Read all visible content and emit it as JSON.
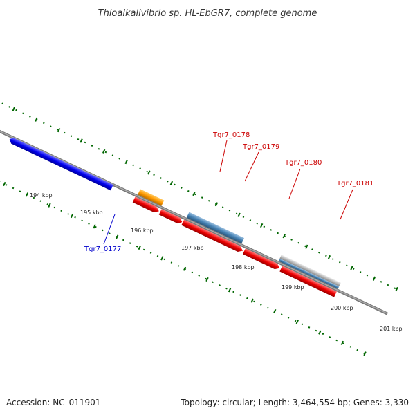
{
  "title": "Thioalkalivibrio sp. HL-EbGR7, complete genome",
  "footer": {
    "accession": "Accession: NC_011901",
    "summary": "Topology: circular; Length: 3,464,554 bp; Genes: 3,330"
  },
  "ticks": [
    "194 kbp",
    "195 kbp",
    "196 kbp",
    "197 kbp",
    "198 kbp",
    "199 kbp",
    "200 kbp",
    "201 kbp"
  ],
  "genes": [
    {
      "label": "Tgr7_0177",
      "color": "#0000cc"
    },
    {
      "label": "Tgr7_0178",
      "color": "#cc0000"
    },
    {
      "label": "Tgr7_0179",
      "color": "#cc0000"
    },
    {
      "label": "Tgr7_0180",
      "color": "#cc0000"
    },
    {
      "label": "Tgr7_0181",
      "color": "#cc0000"
    }
  ],
  "colors": {
    "cds_blue": "#0000ee",
    "cds_green": "#33cc33",
    "cds_red": "#ee0000",
    "cds_orange": "#ff9900",
    "cds_steel": "#4682b4",
    "cds_grey": "#bbbbbb",
    "backbone": "#777777",
    "ticks": "#006600"
  }
}
